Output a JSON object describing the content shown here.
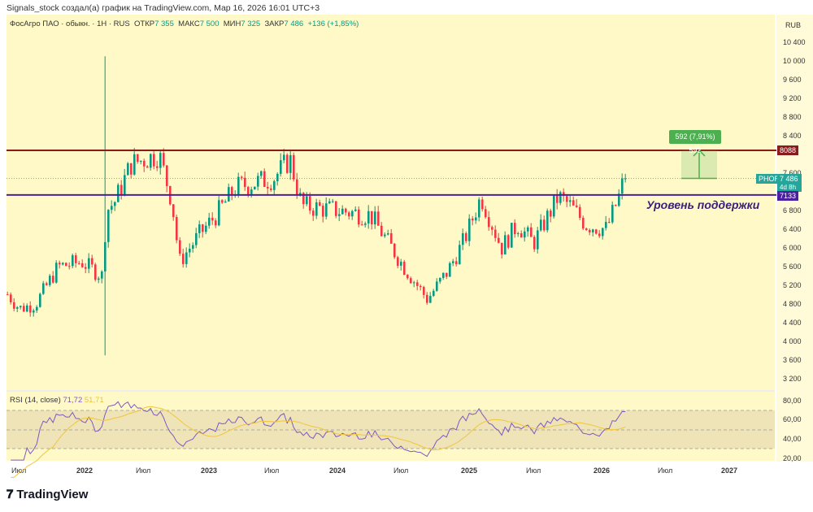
{
  "header": {
    "credit": "Signals_stock создал(а) график на TradingView.com, Мар 16, 2026 16:01 UTC+3"
  },
  "legend": {
    "symbol": "ФосАгро ПАО · обыкн. · 1H · RUS",
    "open_label": "ОТКР",
    "open": "7 355",
    "high_label": "МАКС",
    "high": "7 500",
    "low_label": "МИН",
    "low": "7 325",
    "close_label": "ЗАКР",
    "close": "7 486",
    "change": "+136 (+1,85%)"
  },
  "price_axis": {
    "currency": "RUB",
    "ticks": [
      "10 400",
      "10 000",
      "9 600",
      "9 200",
      "8 800",
      "8 400",
      "7 600",
      "6 800",
      "6 400",
      "6 000",
      "5 600",
      "5 200",
      "4 800",
      "4 400",
      "4 000",
      "3 600",
      "3 200"
    ]
  },
  "price_labels": {
    "resistance": "8088",
    "support": "7133",
    "ticker": "PHOR",
    "last": "7 486",
    "countdown": "4d 8h"
  },
  "annotations": {
    "support_text": "Уровень поддержки",
    "measure": "592 (7,91%) 592"
  },
  "rsi": {
    "title": "RSI (14, close)",
    "value": "71,72",
    "ma": "51,71",
    "ticks": [
      "80,00",
      "60,00",
      "40,00",
      "20,00"
    ]
  },
  "time_axis": [
    "Июл",
    "2022",
    "Июл",
    "2023",
    "Июл",
    "2024",
    "Июл",
    "2025",
    "Июл",
    "2026",
    "Июл",
    "2027"
  ],
  "brand": "TradingView",
  "colors": {
    "up": "#089981",
    "down": "#f23645",
    "resistance": "#8b1a1a",
    "support": "#4a1fa0",
    "rsi": "#7e57c2",
    "rsi_ma": "#f0c63a",
    "bg": "#fff9c8"
  },
  "chart_data": {
    "type": "candlestick",
    "title": "ФосАгро ПАО · обыкн. · 1H",
    "ylabel": "RUB",
    "ylim": [
      3000,
      10600
    ],
    "levels": [
      8088,
      7133
    ],
    "price_path_months_since_jan2021": [
      [
        4.9,
        5000
      ],
      [
        6,
        4700
      ],
      [
        7.5,
        4800
      ],
      [
        9.6,
        5600
      ],
      [
        11.8,
        5700
      ],
      [
        13.7,
        5400
      ],
      [
        14.1,
        6800
      ],
      [
        14.9,
        7000
      ],
      [
        16.4,
        7800
      ],
      [
        19,
        8000
      ],
      [
        20.2,
        7000
      ],
      [
        20.9,
        5700
      ],
      [
        22.8,
        6300
      ],
      [
        24.3,
        6700
      ],
      [
        26.2,
        7300
      ],
      [
        29.7,
        7500
      ],
      [
        31.2,
        7900
      ],
      [
        32.3,
        6900
      ],
      [
        35.6,
        6800
      ],
      [
        38.7,
        6700
      ],
      [
        41.8,
        5600
      ],
      [
        44,
        4900
      ],
      [
        45.9,
        5500
      ],
      [
        47.5,
        6200
      ],
      [
        49,
        7100
      ],
      [
        50.9,
        6000
      ],
      [
        52.4,
        6500
      ],
      [
        53.9,
        6100
      ],
      [
        56.2,
        7100
      ],
      [
        57.3,
        6900
      ],
      [
        58.8,
        6500
      ],
      [
        60.7,
        6400
      ],
      [
        62.5,
        7486
      ]
    ],
    "spike": {
      "month": 14.1,
      "high": 10100,
      "low": 3700
    }
  }
}
